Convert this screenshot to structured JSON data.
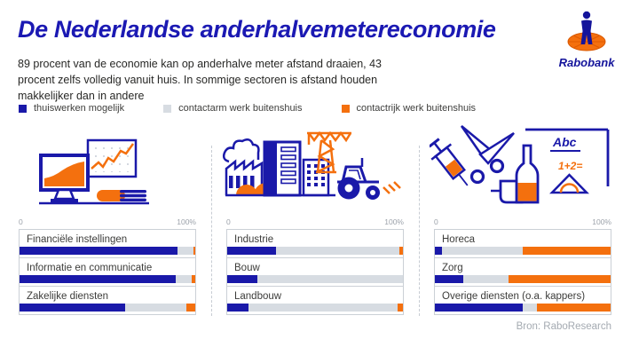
{
  "page": {
    "title": "De Nederlandse anderhalvemetereconomie",
    "subtitle": "89 procent van de economie kan op anderhalve meter afstand draaien, 43 procent zelfs volledig vanuit huis. In sommige sectoren is afstand houden makkelijker dan in andere",
    "source": "Bron: RaboResearch",
    "brand": "Rabobank"
  },
  "colors": {
    "navy": "#1A19A9",
    "orange": "#F4700E",
    "light_gray": "#D7DCE2"
  },
  "legend": [
    {
      "label": "thuiswerken mogelijk",
      "color": "#1A19A9"
    },
    {
      "label": "contactarm werk buitenshuis",
      "color": "#D7DCE2"
    },
    {
      "label": "contactrijk werk buitenshuis",
      "color": "#F4700E"
    }
  ],
  "chart_data": {
    "type": "bar",
    "stacked": true,
    "orientation": "horizontal",
    "axis": {
      "min_label": "0",
      "max_label": "100%",
      "range": [
        0,
        100
      ]
    },
    "series_names": [
      "thuiswerken mogelijk",
      "contactarm werk buitenshuis",
      "contactrijk werk buitenshuis"
    ],
    "groups": [
      {
        "illustration": "office-monitor-chart-book",
        "rows": [
          {
            "label": "Financiële instellingen",
            "values": [
              90,
              9,
              1
            ]
          },
          {
            "label": "Informatie en communicatie",
            "values": [
              89,
              9,
              2
            ]
          },
          {
            "label": "Zakelijke diensten",
            "values": [
              60,
              35,
              5
            ]
          }
        ]
      },
      {
        "illustration": "factory-crane-tractor",
        "rows": [
          {
            "label": "Industrie",
            "values": [
              28,
              70,
              2
            ]
          },
          {
            "label": "Bouw",
            "values": [
              17,
              83,
              0
            ]
          },
          {
            "label": "Landbouw",
            "values": [
              12,
              85,
              3
            ]
          }
        ]
      },
      {
        "illustration": "scissors-syringe-bottle-schoolboard",
        "rows": [
          {
            "label": "Horeca",
            "values": [
              4,
              46,
              50
            ]
          },
          {
            "label": "Zorg",
            "values": [
              16,
              26,
              58
            ]
          },
          {
            "label": "Overige diensten (o.a. kappers)",
            "values": [
              50,
              8,
              42
            ]
          }
        ]
      }
    ]
  },
  "board_text": {
    "abc": "Abc",
    "sum": "1+2="
  }
}
